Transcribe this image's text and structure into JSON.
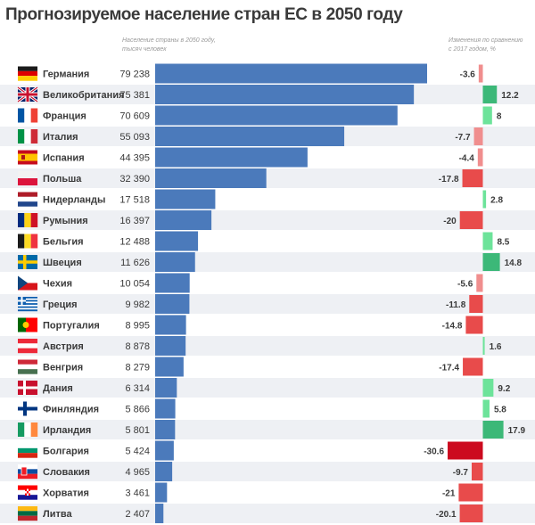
{
  "title": "Прогнозируемое население стран ЕС в 2050 году",
  "population_note": [
    "Население страны в 2050 году,",
    "тысяч человек"
  ],
  "change_note": [
    "Изменения по сравнению",
    "с 2017 годом, %"
  ],
  "colors": {
    "population_bar": "#4b7abb",
    "row_shade": "#eef0f4",
    "positive_light": "#6de39a",
    "positive_strong": "#3cb878",
    "negative_light": "#f08e8e",
    "negative_mid": "#e84b4b",
    "negative_strong": "#cc0a1e"
  },
  "chart_data": {
    "type": "bar",
    "title": "Прогнозируемое население стран ЕС в 2050 году",
    "categories": [
      "Германия",
      "Великобритания",
      "Франция",
      "Италия",
      "Испания",
      "Польша",
      "Нидерланды",
      "Румыния",
      "Бельгия",
      "Швеция",
      "Чехия",
      "Греция",
      "Португалия",
      "Австрия",
      "Венгрия",
      "Дания",
      "Финляндия",
      "Ирландия",
      "Болгария",
      "Словакия",
      "Хорватия",
      "Литва"
    ],
    "flags": [
      "germany",
      "uk",
      "france",
      "italy",
      "spain",
      "poland",
      "netherlands",
      "romania",
      "belgium",
      "sweden",
      "czech",
      "greece",
      "portugal",
      "austria",
      "hungary",
      "denmark",
      "finland",
      "ireland",
      "bulgaria",
      "slovakia",
      "croatia",
      "lithuania"
    ],
    "series": [
      {
        "name": "Население страны в 2050 году, тысяч человек",
        "values": [
          79238,
          75381,
          70609,
          55093,
          44395,
          32390,
          17518,
          16397,
          12488,
          11626,
          10054,
          9982,
          8995,
          8878,
          8279,
          6314,
          5866,
          5801,
          5424,
          4965,
          3461,
          2407
        ],
        "labels": [
          "79 238",
          "75 381",
          "70 609",
          "55 093",
          "44 395",
          "32 390",
          "17 518",
          "16 397",
          "12 488",
          "11 626",
          "10 054",
          "9 982",
          "8 995",
          "8 878",
          "8 279",
          "6 314",
          "5 866",
          "5 801",
          "5 424",
          "4 965",
          "3 461",
          "2 407"
        ]
      },
      {
        "name": "Изменения по сравнению с 2017 годом, %",
        "values": [
          -3.6,
          12.2,
          8,
          -7.7,
          -4.4,
          -17.8,
          2.8,
          -20,
          8.5,
          14.8,
          -5.6,
          -11.8,
          -14.8,
          1.6,
          -17.4,
          9.2,
          5.8,
          17.9,
          -30.6,
          -9.7,
          -21,
          -20.1
        ],
        "labels": [
          "-3.6",
          "12.2",
          "8",
          "-7.7",
          "-4.4",
          "-17.8",
          "2.8",
          "-20",
          "8.5",
          "14.8",
          "-5.6",
          "-11.8",
          "-14.8",
          "1.6",
          "-17.4",
          "9.2",
          "5.8",
          "17.9",
          "-30.6",
          "-9.7",
          "-21",
          "-20.1"
        ]
      }
    ]
  }
}
